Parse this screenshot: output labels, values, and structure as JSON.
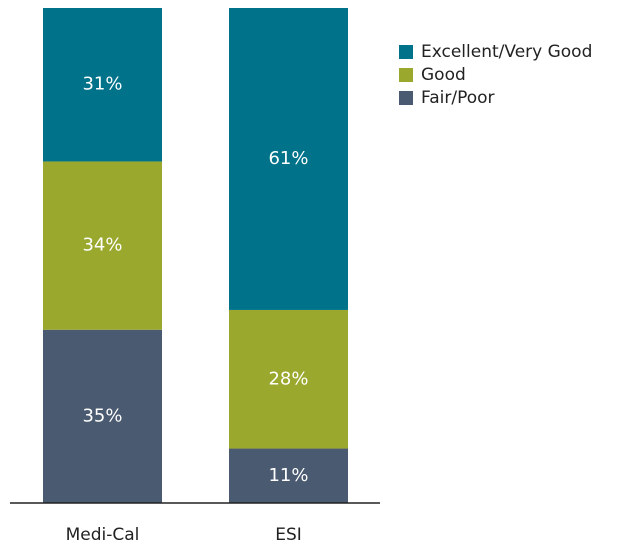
{
  "chart_data": {
    "type": "stacked_bar",
    "categories": [
      "Medi-Cal",
      "ESI"
    ],
    "series": [
      {
        "name": "Excellent/Very Good",
        "color": "#00728a",
        "values": [
          31,
          61
        ],
        "value_labels": [
          "31%",
          "61%"
        ]
      },
      {
        "name": "Good",
        "color": "#9aa82e",
        "values": [
          34,
          28
        ],
        "value_labels": [
          "34%",
          "28%"
        ]
      },
      {
        "name": "Fair/Poor",
        "color": "#4a5a70",
        "values": [
          35,
          11
        ],
        "value_labels": [
          "35%",
          "11%"
        ]
      }
    ],
    "ylim": [
      0,
      100
    ],
    "legend": "upper right"
  }
}
